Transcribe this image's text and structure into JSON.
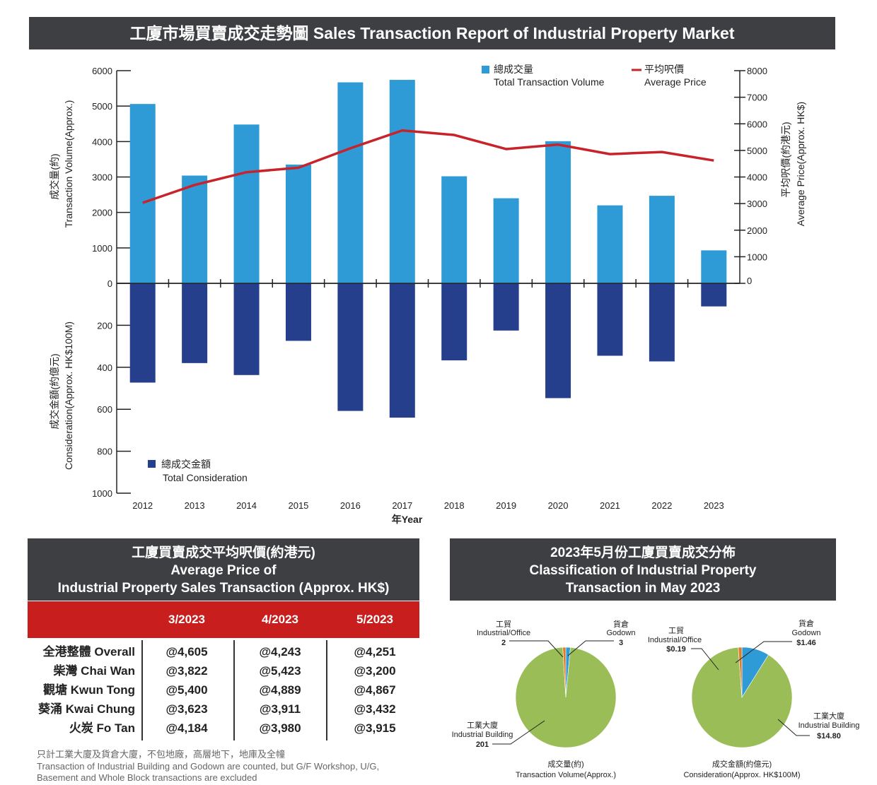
{
  "title": "工廈市場買賣成交走勢圖 Sales Transaction Report of Industrial Property Market",
  "chart_data": [
    {
      "type": "bar",
      "categories": [
        "2012",
        "2013",
        "2014",
        "2015",
        "2016",
        "2017",
        "2018",
        "2019",
        "2020",
        "2021",
        "2022",
        "2023"
      ],
      "xlabel": "年Year",
      "series": [
        {
          "name": "總成交量",
          "name_en": "Total Transaction Volume",
          "axis": "left-top",
          "color": "#2e9bd6",
          "values": [
            5060,
            3040,
            4480,
            3350,
            5670,
            5740,
            3020,
            2400,
            4010,
            2200,
            2470,
            930
          ]
        },
        {
          "name": "平均呎價",
          "name_en": "Average Price",
          "type": "line",
          "axis": "right",
          "color": "#c8232a",
          "values": [
            3030,
            3700,
            4180,
            4350,
            5080,
            5750,
            5580,
            5050,
            5220,
            4860,
            4940,
            4620
          ]
        },
        {
          "name": "總成交金額",
          "name_en": "Total Consideration",
          "axis": "left-bottom",
          "color": "#263f8c",
          "values": [
            473,
            380,
            437,
            274,
            608,
            640,
            367,
            225,
            547,
            345,
            372,
            110
          ]
        }
      ],
      "y_top": {
        "label_zh": "成交量(約)",
        "label_en": "Transaction Volume(Approx.)",
        "ylim": [
          0,
          6000
        ],
        "ticks": [
          "0",
          "1000",
          "2000",
          "3000",
          "4000",
          "5000",
          "6000"
        ]
      },
      "y_bottom": {
        "label_zh": "成交金額(約億元)",
        "label_en": "Consideration(Approx. HK$100M)",
        "ylim": [
          0,
          1000
        ],
        "ticks": [
          "200",
          "400",
          "600",
          "800",
          "1000"
        ]
      },
      "y_right": {
        "label_zh": "平均呎價(約港元)",
        "label_en": "Average Price(Approx. HK$)",
        "ylim": [
          0,
          8000
        ],
        "ticks": [
          "0",
          "1000",
          "2000",
          "3000",
          "4000",
          "5000",
          "6000",
          "7000",
          "8000"
        ]
      }
    },
    {
      "type": "pie",
      "title_zh": "成交量(約)",
      "title_en": "Transaction Volume(Approx.)",
      "slices": [
        {
          "label_zh": "工業大廈",
          "label_en": "Industrial Building",
          "value": 201,
          "display": "201",
          "color": "#9bbd58"
        },
        {
          "label_zh": "工貿",
          "label_en": "Industrial/Office",
          "value": 2,
          "display": "2",
          "color": "#e07b2a"
        },
        {
          "label_zh": "貨倉",
          "label_en": "Godown",
          "value": 3,
          "display": "3",
          "color": "#2e9bd6"
        }
      ]
    },
    {
      "type": "pie",
      "title_zh": "成交金額(約億元)",
      "title_en": "Consideration(Approx. HK$100M)",
      "slices": [
        {
          "label_zh": "工業大廈",
          "label_en": "Industrial Building",
          "value": 14.8,
          "display": "$14.80",
          "color": "#9bbd58"
        },
        {
          "label_zh": "工貿",
          "label_en": "Industrial/Office",
          "value": 0.19,
          "display": "$0.19",
          "color": "#e07b2a"
        },
        {
          "label_zh": "貨倉",
          "label_en": "Godown",
          "value": 1.46,
          "display": "$1.46",
          "color": "#2e9bd6"
        }
      ]
    }
  ],
  "price_table": {
    "title_zh": "工廈買賣成交平均呎價(約港元)",
    "title_en1": "Average Price of",
    "title_en2": "Industrial Property Sales Transaction (Approx. HK$)",
    "columns": [
      "3/2023",
      "4/2023",
      "5/2023"
    ],
    "rows": [
      {
        "name": "全港整體 Overall",
        "values": [
          "@4,605",
          "@4,243",
          "@4,251"
        ]
      },
      {
        "name": "柴灣 Chai Wan",
        "values": [
          "@3,822",
          "@5,423",
          "@3,200"
        ]
      },
      {
        "name": "觀塘 Kwun Tong",
        "values": [
          "@5,400",
          "@4,889",
          "@4,867"
        ]
      },
      {
        "name": "葵涌 Kwai Chung",
        "values": [
          "@3,623",
          "@3,911",
          "@3,432"
        ]
      },
      {
        "name": "火炭 Fo Tan",
        "values": [
          "@4,184",
          "@3,980",
          "@3,915"
        ]
      }
    ],
    "note_zh": "只計工業大廈及貨倉大廈，不包地廠，高層地下，地庫及全幢",
    "note_en1": "Transaction of Industrial Building and Godown are counted, but G/F Workshop, U/G,",
    "note_en2": "Basement and Whole Block transactions are excluded"
  },
  "classification": {
    "title_zh": "2023年5月份工廈買賣成交分佈",
    "title_en1": "Classification of Industrial Property",
    "title_en2": "Transaction in May 2023"
  }
}
